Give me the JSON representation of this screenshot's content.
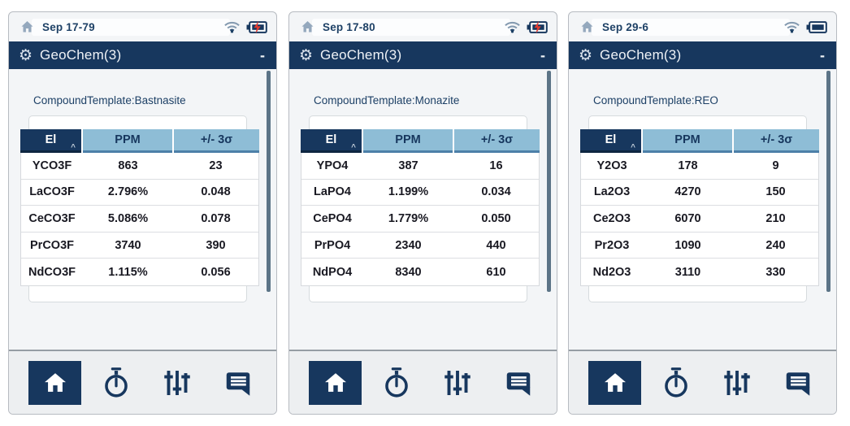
{
  "app": {
    "title": "GeoChem(3)",
    "window_minimize": "-"
  },
  "icons": {
    "settings_gear": "⚙",
    "status_bar": [
      "home-icon",
      "wifi-icon",
      "battery-icon"
    ],
    "bottom_nav": [
      "home-icon",
      "stopwatch-icon",
      "sliders-icon",
      "messages-icon"
    ]
  },
  "colors": {
    "navy": "#17375e",
    "table_header_blue": "#8ebdd6",
    "charging_bolt_red": "#e0392e",
    "scrollbar": "#5c7487"
  },
  "table": {
    "headers": [
      "El",
      "PPM",
      "+/- 3σ"
    ],
    "sort_caret": "^"
  },
  "bottom_nav": [
    {
      "name": "home",
      "active": true
    },
    {
      "name": "stopwatch",
      "active": false
    },
    {
      "name": "sliders",
      "active": false
    },
    {
      "name": "messages",
      "active": false
    }
  ],
  "screens": [
    {
      "status_date": "Sep 17-79",
      "battery": "charging",
      "template_label": "CompoundTemplate:Bastnasite",
      "rows": [
        [
          "YCO3F",
          "863",
          "23"
        ],
        [
          "LaCO3F",
          "2.796%",
          "0.048"
        ],
        [
          "CeCO3F",
          "5.086%",
          "0.078"
        ],
        [
          "PrCO3F",
          "3740",
          "390"
        ],
        [
          "NdCO3F",
          "1.115%",
          "0.056"
        ]
      ]
    },
    {
      "status_date": "Sep 17-80",
      "battery": "charging",
      "template_label": "CompoundTemplate:Monazite",
      "rows": [
        [
          "YPO4",
          "387",
          "16"
        ],
        [
          "LaPO4",
          "1.199%",
          "0.034"
        ],
        [
          "CePO4",
          "1.779%",
          "0.050"
        ],
        [
          "PrPO4",
          "2340",
          "440"
        ],
        [
          "NdPO4",
          "8340",
          "610"
        ]
      ]
    },
    {
      "status_date": "Sep 29-6",
      "battery": "full",
      "template_label": "CompoundTemplate:REO",
      "rows": [
        [
          "Y2O3",
          "178",
          "9"
        ],
        [
          "La2O3",
          "4270",
          "150"
        ],
        [
          "Ce2O3",
          "6070",
          "210"
        ],
        [
          "Pr2O3",
          "1090",
          "240"
        ],
        [
          "Nd2O3",
          "3110",
          "330"
        ]
      ]
    }
  ]
}
